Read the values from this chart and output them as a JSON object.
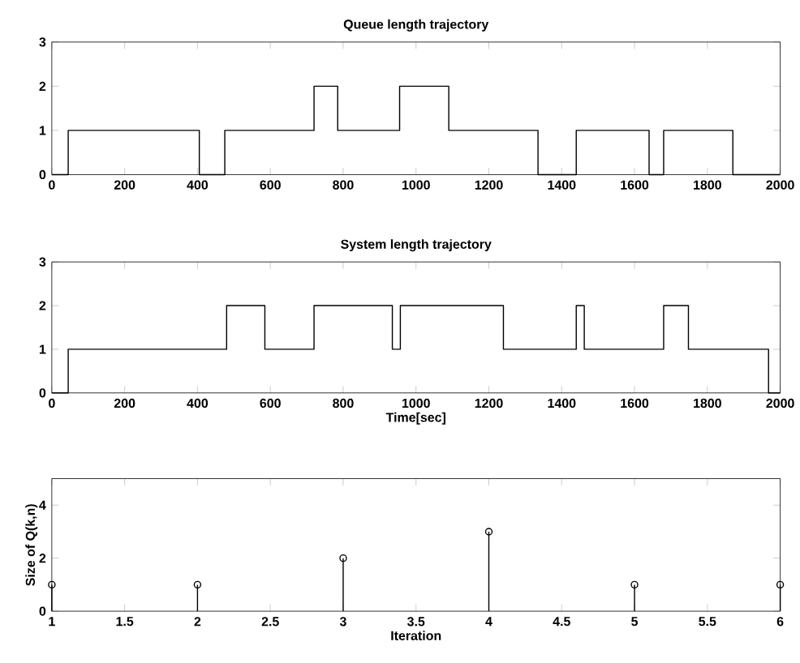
{
  "chart_data": [
    {
      "type": "step",
      "title": "Queue length trajectory",
      "color": "#000000",
      "grid": false,
      "x": [
        0,
        45,
        405,
        475,
        720,
        785,
        955,
        1090,
        1335,
        1440,
        1640,
        1680,
        1870,
        2000
      ],
      "values": [
        0,
        1,
        0,
        1,
        2,
        1,
        2,
        1,
        0,
        1,
        0,
        1,
        0,
        0
      ],
      "xlim": [
        0,
        2000
      ],
      "ylim": [
        0,
        3
      ],
      "xticks": [
        0,
        200,
        400,
        600,
        800,
        1000,
        1200,
        1400,
        1600,
        1800,
        2000
      ],
      "yticks": [
        0,
        1,
        2,
        3
      ]
    },
    {
      "type": "step",
      "title": "System length trajectory",
      "xlabel": "Time[sec]",
      "color": "#000000",
      "grid": false,
      "x": [
        0,
        45,
        480,
        585,
        720,
        935,
        957,
        1240,
        1440,
        1462,
        1680,
        1748,
        1968,
        2000
      ],
      "values": [
        0,
        1,
        2,
        1,
        2,
        1,
        2,
        1,
        2,
        1,
        2,
        1,
        0,
        0
      ],
      "xlim": [
        0,
        2000
      ],
      "ylim": [
        0,
        3
      ],
      "xticks": [
        0,
        200,
        400,
        600,
        800,
        1000,
        1200,
        1400,
        1600,
        1800,
        2000
      ],
      "yticks": [
        0,
        1,
        2,
        3
      ]
    },
    {
      "type": "lollipop",
      "xlabel": "Iteration",
      "ylabel": "Size of Q(k,n)",
      "color": "#000000",
      "marker": "circle",
      "grid": false,
      "x": [
        1,
        2,
        3,
        4,
        5,
        6
      ],
      "values": [
        1,
        1,
        2,
        3,
        1,
        1
      ],
      "xlim": [
        1,
        6
      ],
      "ylim": [
        0,
        5
      ],
      "xticks": [
        1,
        1.5,
        2,
        2.5,
        3,
        3.5,
        4,
        4.5,
        5,
        5.5,
        6
      ],
      "yticks": [
        0,
        2,
        4
      ]
    }
  ]
}
